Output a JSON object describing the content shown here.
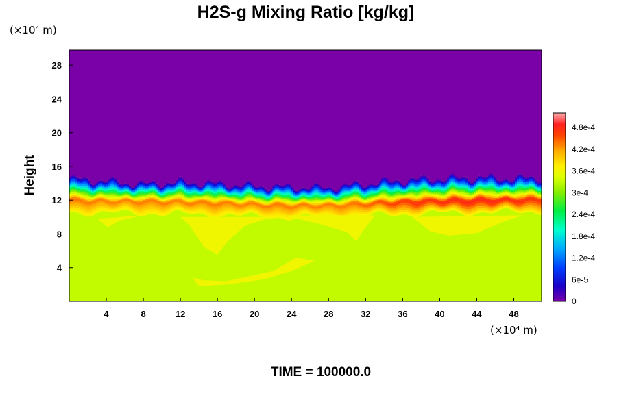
{
  "chart_data": {
    "type": "heatmap",
    "title": "H2S-g Mixing Ratio [kg/kg]",
    "ylabel": "Height",
    "xlabel": "",
    "x_unit_label": "(×10⁴ m)",
    "y_unit_label": "(×10⁴ m)",
    "xlim": [
      0,
      51
    ],
    "ylim": [
      0,
      29.8
    ],
    "x_ticks": [
      4,
      8,
      12,
      16,
      20,
      24,
      28,
      32,
      36,
      40,
      44,
      48
    ],
    "y_ticks": [
      4,
      8,
      12,
      16,
      20,
      24,
      28
    ],
    "colorbar": {
      "range": [
        0,
        0.00052
      ],
      "tick_values": [
        0,
        6e-05,
        0.00012,
        0.00018,
        0.00024,
        0.0003,
        0.00036,
        0.00042,
        0.00048
      ],
      "tick_labels": [
        "0",
        "6e-5",
        "1.2e-4",
        "1.8e-4",
        "2.4e-4",
        "3e-4",
        "3.6e-4",
        "4.2e-4",
        "4.8e-4"
      ]
    },
    "field": {
      "upper_value": 0.0,
      "lower_value": 0.00033,
      "plume_value": 0.00036,
      "interface_height": [
        [
          0,
          14.6
        ],
        [
          4,
          14.3
        ],
        [
          8,
          13.9
        ],
        [
          12,
          14.2
        ],
        [
          16,
          14.0
        ],
        [
          20,
          13.7
        ],
        [
          24,
          13.6
        ],
        [
          28,
          13.5
        ],
        [
          32,
          14.0
        ],
        [
          36,
          14.4
        ],
        [
          40,
          14.6
        ],
        [
          44,
          14.7
        ],
        [
          48,
          14.6
        ],
        [
          51,
          14.7
        ]
      ],
      "peak_layer_height": [
        [
          0,
          12.0
        ],
        [
          4,
          11.9
        ],
        [
          8,
          11.9
        ],
        [
          12,
          11.8
        ],
        [
          16,
          11.7
        ],
        [
          20,
          11.5
        ],
        [
          24,
          11.4
        ],
        [
          28,
          11.4
        ],
        [
          32,
          11.6
        ],
        [
          36,
          11.8
        ],
        [
          40,
          11.9
        ],
        [
          44,
          12.0
        ],
        [
          48,
          12.0
        ],
        [
          51,
          12.1
        ]
      ]
    },
    "footer": "TIME = 100000.0"
  }
}
